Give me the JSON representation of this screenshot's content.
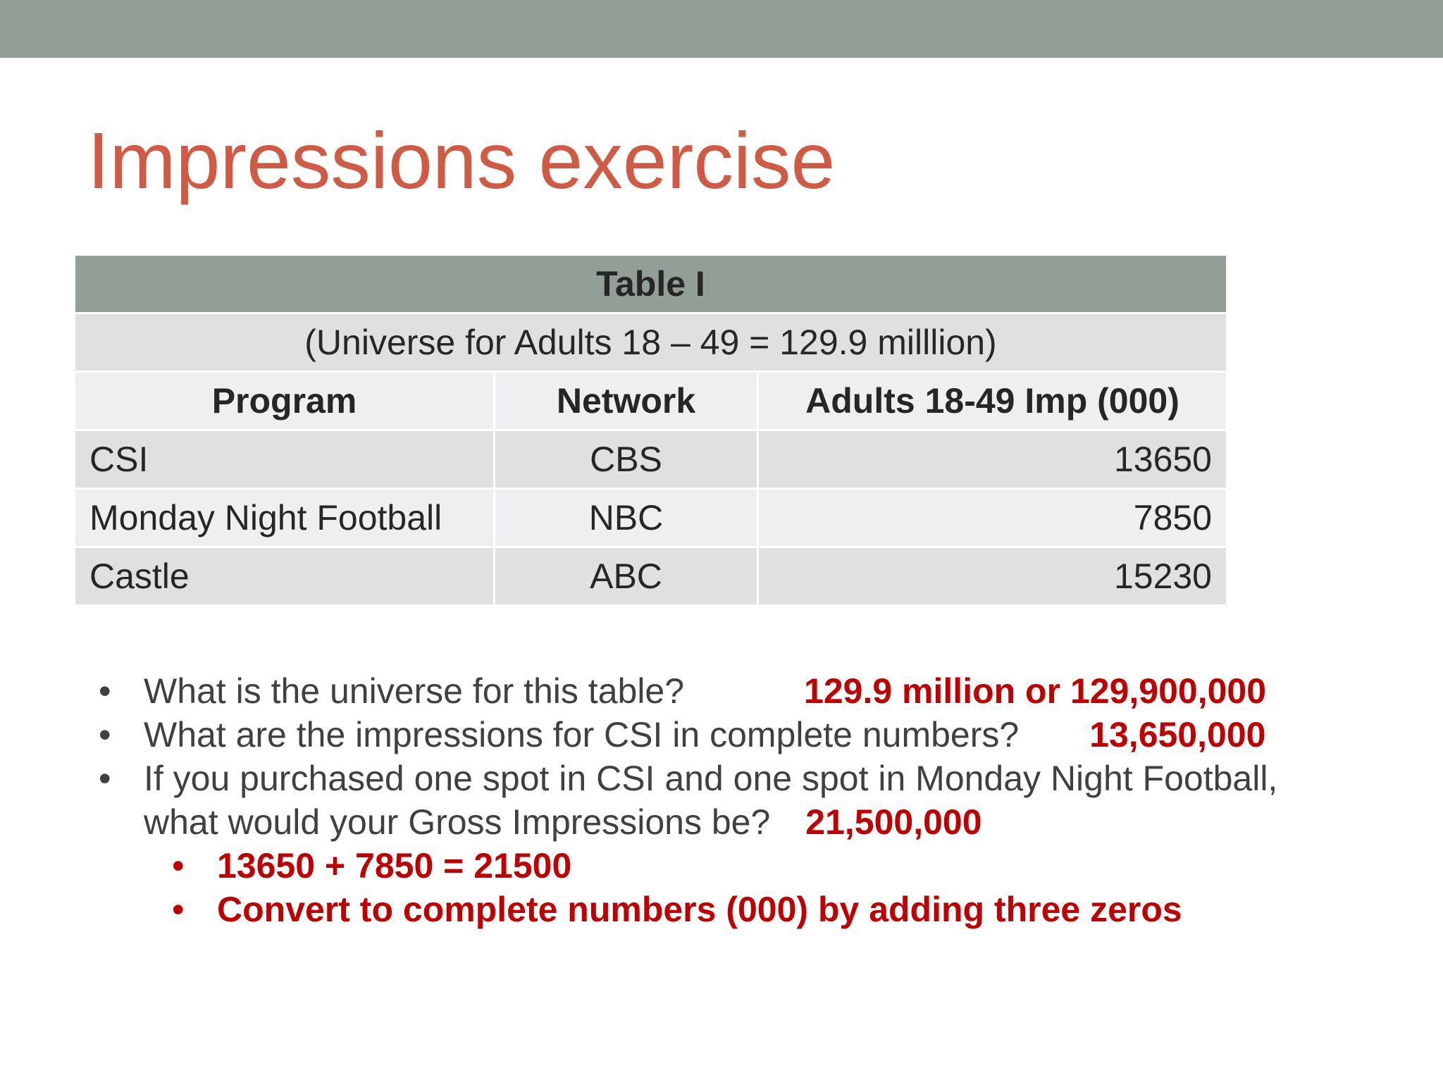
{
  "slide": {
    "title": "Impressions exercise"
  },
  "table": {
    "title": "Table I",
    "universe_note": "(Universe for Adults 18 – 49 = 129.9 milllion)",
    "headers": [
      "Program",
      "Network",
      "Adults 18-49 Imp (000)"
    ],
    "rows": [
      {
        "program": "CSI",
        "network": "CBS",
        "impressions": "13650"
      },
      {
        "program": "Monday Night Football",
        "network": "NBC",
        "impressions": "7850"
      },
      {
        "program": "Castle",
        "network": "ABC",
        "impressions": "15230"
      }
    ]
  },
  "questions": [
    {
      "text": "What is the universe for this table?",
      "answer": "129.9 million or 129,900,000"
    },
    {
      "text": "What are the impressions for CSI in complete numbers?",
      "answer": "13,650,000"
    },
    {
      "text_line1": "If you purchased one spot in CSI and one spot in Monday Night Football,",
      "text_line2": "what would your Gross Impressions be?",
      "answer": "21,500,000",
      "sub_points": [
        "13650 + 7850 = 21500",
        "Convert to complete numbers (000) by adding three zeros"
      ]
    }
  ],
  "colors": {
    "accent_bar": "#919f97",
    "title": "#d05a44",
    "answer": "#c00000"
  }
}
